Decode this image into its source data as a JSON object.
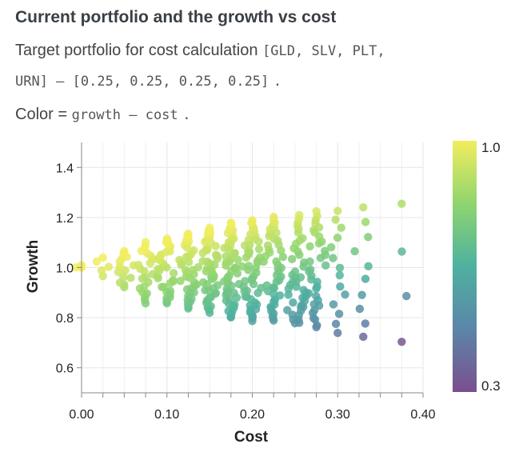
{
  "header": {
    "title": "Current portfolio and the growth vs cost",
    "line1_text": "Target portfolio for cost calculation",
    "line1_code": "[GLD, SLV, PLT,",
    "line2_code": "URN] – [0.25, 0.25, 0.25, 0.25]",
    "line2_tail": ".",
    "line3_text": "Color =",
    "line3_code": "growth – cost",
    "line3_tail": "."
  },
  "chart_data": {
    "type": "scatter",
    "xlabel": "Cost",
    "ylabel": "Growth",
    "xlim": [
      0.0,
      0.4
    ],
    "ylim": [
      0.5,
      1.5
    ],
    "xticks": [
      "0.00",
      "0.10",
      "0.20",
      "0.30",
      "0.40"
    ],
    "yticks": [
      "0.6",
      "0.8",
      "1.0",
      "1.2",
      "1.4"
    ],
    "colorbar": {
      "label_max": "1.0",
      "label_min": "0.3",
      "min": 0.3,
      "max": 1.0,
      "colormap": "viridis"
    },
    "clusters": [
      {
        "x": 0.0,
        "y_range": [
          1.0,
          1.01
        ],
        "n": 3
      },
      {
        "x": 0.025,
        "y_range": [
          0.97,
          1.04
        ],
        "n": 5
      },
      {
        "x": 0.05,
        "y_range": [
          0.92,
          1.07
        ],
        "n": 14
      },
      {
        "x": 0.075,
        "y_range": [
          0.86,
          1.1
        ],
        "n": 22
      },
      {
        "x": 0.1,
        "y_range": [
          0.86,
          1.12
        ],
        "n": 32
      },
      {
        "x": 0.125,
        "y_range": [
          0.84,
          1.14
        ],
        "n": 40
      },
      {
        "x": 0.15,
        "y_range": [
          0.82,
          1.16
        ],
        "n": 48
      },
      {
        "x": 0.175,
        "y_range": [
          0.8,
          1.18
        ],
        "n": 52
      },
      {
        "x": 0.2,
        "y_range": [
          0.79,
          1.19
        ],
        "n": 50
      },
      {
        "x": 0.225,
        "y_range": [
          0.79,
          1.2
        ],
        "n": 44
      },
      {
        "x": 0.25,
        "y_range": [
          0.78,
          0.96
        ],
        "n": 12
      },
      {
        "x": 0.255,
        "y_range": [
          0.78,
          1.21
        ],
        "n": 30
      },
      {
        "x": 0.275,
        "y_range": [
          0.76,
          1.22
        ],
        "n": 34
      },
      {
        "x": 0.3,
        "y_range": [
          0.74,
          1.23
        ],
        "n": 14
      },
      {
        "x": 0.33,
        "y_range": [
          0.72,
          1.24
        ],
        "n": 10
      },
      {
        "x": 0.375,
        "y_range": [
          0.7,
          1.25
        ],
        "n": 4
      }
    ]
  }
}
